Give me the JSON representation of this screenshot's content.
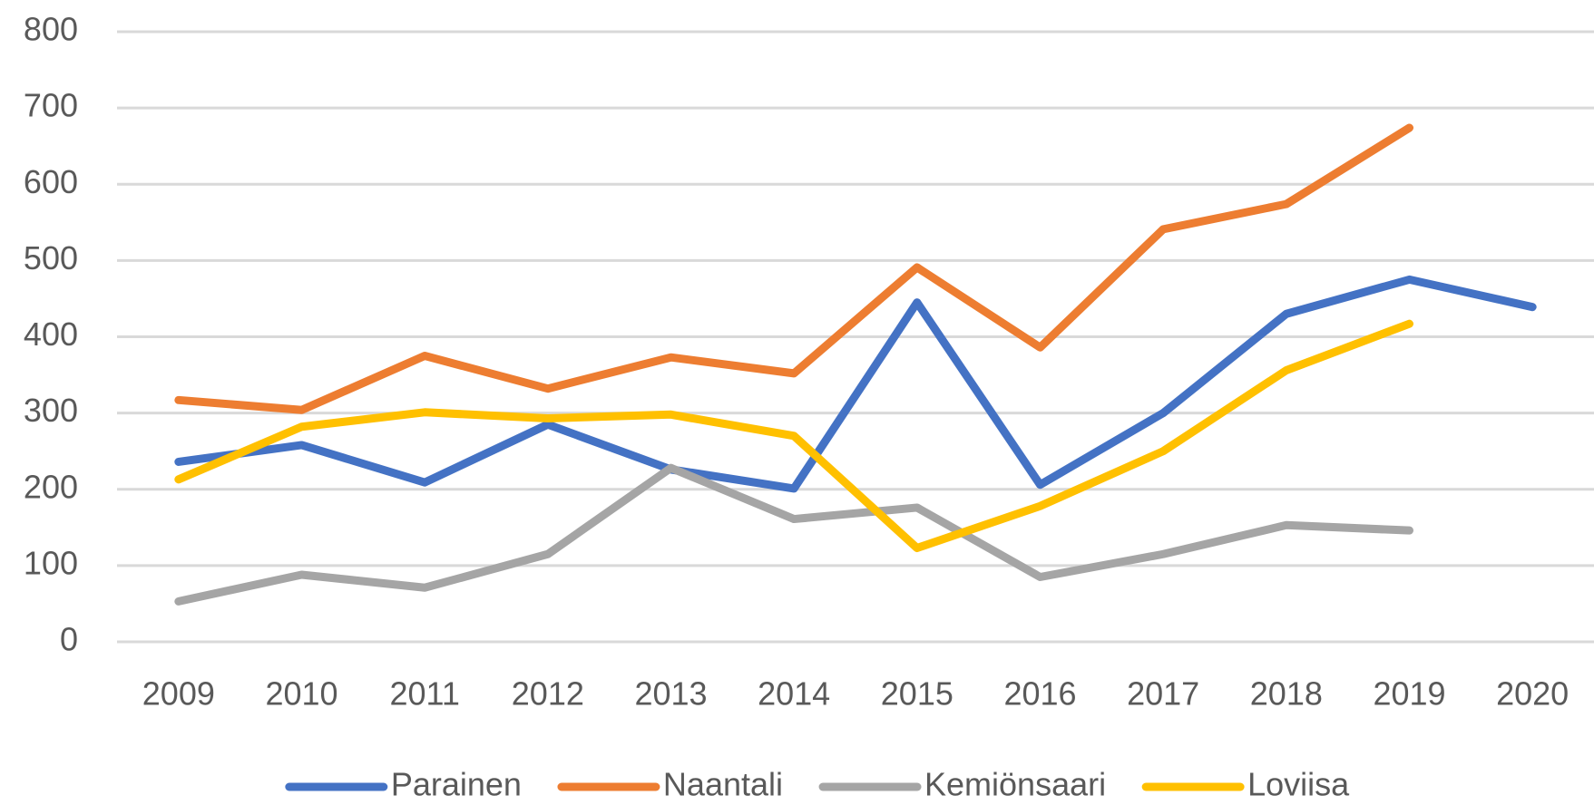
{
  "chart_data": {
    "type": "line",
    "categories": [
      "2009",
      "2010",
      "2011",
      "2012",
      "2013",
      "2014",
      "2015",
      "2016",
      "2017",
      "2018",
      "2019",
      "2020"
    ],
    "series": [
      {
        "name": "Parainen",
        "color": "#4472c4",
        "values": [
          236,
          258,
          209,
          285,
          226,
          201,
          445,
          206,
          300,
          430,
          475,
          439
        ]
      },
      {
        "name": "Naantali",
        "color": "#ed7d31",
        "values": [
          317,
          304,
          375,
          332,
          373,
          352,
          491,
          386,
          541,
          574,
          674,
          null
        ]
      },
      {
        "name": "Kemiönsaari",
        "color": "#a5a5a5",
        "values": [
          53,
          88,
          71,
          115,
          228,
          161,
          176,
          85,
          115,
          153,
          146,
          null
        ]
      },
      {
        "name": "Loviisa",
        "color": "#ffc000",
        "values": [
          213,
          282,
          301,
          293,
          298,
          270,
          123,
          178,
          250,
          356,
          417,
          null
        ]
      }
    ],
    "ylim": [
      0,
      800
    ],
    "yticks": [
      0,
      100,
      200,
      300,
      400,
      500,
      600,
      700,
      800
    ],
    "grid": true,
    "legend": "bottom"
  }
}
